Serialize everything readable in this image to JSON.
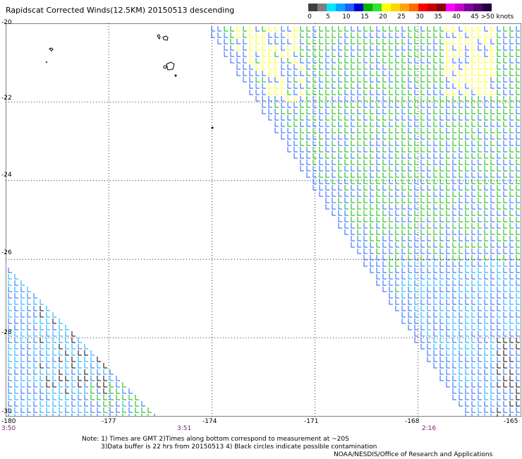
{
  "header": {
    "title": "Rapidscat Corrected Winds(12.5KM) 20150513 descending"
  },
  "legend": {
    "unit_label": ">50 knots",
    "ticks": [
      "0",
      "5",
      "10",
      "15",
      "20",
      "25",
      "30",
      "35",
      "40",
      "45"
    ],
    "colors": [
      "#404040",
      "#7f7f7f",
      "#00e5ff",
      "#00a8ff",
      "#1e5fff",
      "#0000cc",
      "#00b400",
      "#33e033",
      "#ffff00",
      "#ffd400",
      "#ffa500",
      "#ff6a00",
      "#ff0000",
      "#c80000",
      "#8b0000",
      "#ff00ff",
      "#c800c8",
      "#8000a0",
      "#500070",
      "#200040"
    ]
  },
  "axes": {
    "lat_labels": [
      "-20",
      "-22",
      "-24",
      "-26",
      "-28",
      "-30"
    ],
    "lon_labels": [
      "-180",
      "-177",
      "-174",
      "-171",
      "-168",
      "-165"
    ],
    "time_labels": [
      "3:50",
      "3:51",
      "2:16"
    ]
  },
  "notes": {
    "line1": "Note: 1) Times are GMT 2)Times along bottom correspond to measurement at ~20S",
    "line2": "3)Data buffer is 22 hrs from 20150513 4) Black circles indicate possible contamination",
    "line3": "NOAA/NESDIS/Office of Research and Applications"
  },
  "map_data": {
    "lat_range": [
      -30,
      -20
    ],
    "lon_range": [
      -180,
      -165
    ],
    "swaths": [
      {
        "name": "east",
        "polygon_lonlat": [
          [
            -174.2,
            -20
          ],
          [
            -165,
            -20
          ],
          [
            -165,
            -30
          ],
          [
            -166.6,
            -30
          ]
        ]
      },
      {
        "name": "west",
        "polygon_lonlat": [
          [
            -180,
            -26
          ],
          [
            -180,
            -30
          ],
          [
            -175.5,
            -30
          ]
        ]
      }
    ],
    "wind_zones": [
      {
        "color": "#1e5fff",
        "desc": "swath edges 5-10 kt"
      },
      {
        "color": "#00b400",
        "desc": "interior 15-20 kt"
      },
      {
        "color": "#ffff00",
        "desc": "NW corner band 20-25 kt"
      },
      {
        "color": "#00a8ff",
        "desc": "southeast 5-10 kt"
      },
      {
        "color": "#000000",
        "desc": "possible contamination"
      }
    ]
  }
}
